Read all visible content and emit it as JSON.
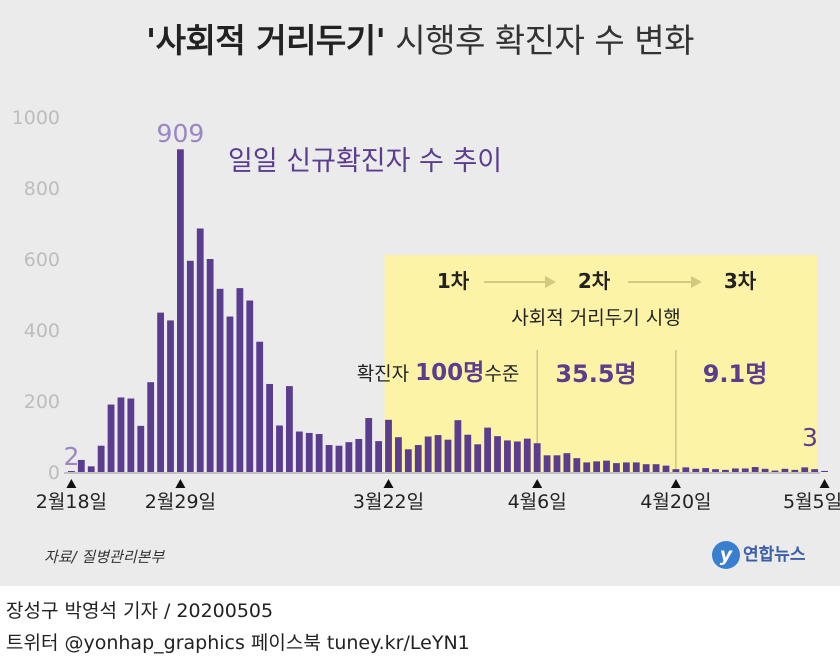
{
  "title": {
    "bold": "'사회적 거리두기'",
    "rest": " 시행후 확진자 수 변화"
  },
  "source": "자료/ 질병관리본부",
  "logo": {
    "mark": "y",
    "text": "연합뉴스"
  },
  "footer": {
    "line1": "장성구  박영석 기자 / 20200505",
    "line2": "트위터 @yonhap_graphics  페이스북 tuney.kr/LeYN1"
  },
  "colors": {
    "background": "#ebebeb",
    "bar": "#5b3d8f",
    "highlight": "#fdf3a6",
    "axis_text": "#bdbdbd",
    "peak_label": "#9b86c2",
    "arrow": "#d4c77e"
  },
  "chart_data": {
    "type": "bar",
    "title": "일일 신규확진자 수 추이",
    "x_tick_labels": [
      "2월18일",
      "2월29일",
      "3월22일",
      "4월6일",
      "4월20일",
      "5월5일"
    ],
    "y_ticks": [
      0,
      200,
      400,
      600,
      800,
      1000
    ],
    "ylim": [
      0,
      1000
    ],
    "grid": false,
    "values": [
      2,
      34,
      16,
      74,
      190,
      210,
      207,
      130,
      253,
      449,
      427,
      909,
      595,
      686,
      600,
      516,
      438,
      518,
      483,
      367,
      248,
      131,
      242,
      114,
      110,
      107,
      76,
      74,
      84,
      93,
      152,
      87,
      147,
      98,
      64,
      76,
      100,
      104,
      91,
      146,
      105,
      78,
      125,
      101,
      89,
      86,
      94,
      81,
      47,
      47,
      53,
      39,
      27,
      30,
      32,
      25,
      27,
      27,
      22,
      22,
      18,
      8,
      13,
      9,
      11,
      8,
      6,
      10,
      10,
      14,
      9,
      4,
      9,
      6,
      13,
      8,
      3
    ],
    "annotations": {
      "first_value_label": "2",
      "peak_label": "909",
      "last_value_label": "3",
      "phases": [
        "1차",
        "2차",
        "3차"
      ],
      "phase_caption": "사회적 거리두기 시행",
      "phase_prefix": "확진자 ",
      "phase1_value": "100명",
      "phase1_suffix": "수준",
      "phase2_value": "35.5명",
      "phase3_value": "9.1명"
    }
  }
}
